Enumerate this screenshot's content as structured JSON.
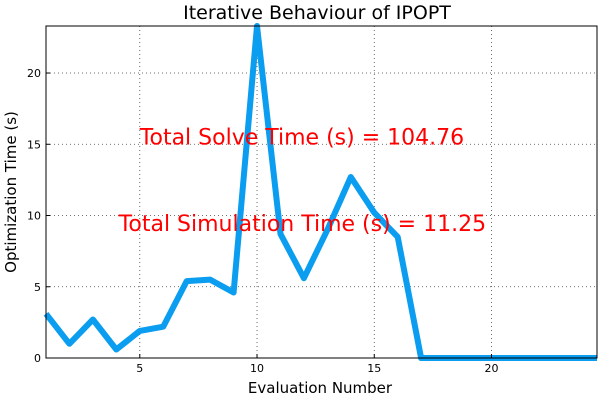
{
  "chart_data": {
    "type": "line",
    "title": "Iterative Behaviour of IPOPT",
    "xlabel": "Evaluation Number",
    "ylabel": "Optimization Time (s)",
    "xlim": [
      1,
      24.5
    ],
    "ylim": [
      0,
      23.3
    ],
    "xticks": [
      5,
      10,
      15,
      20
    ],
    "yticks": [
      0,
      5,
      10,
      15,
      20
    ],
    "grid": true,
    "series": [
      {
        "color": "#0b9df0",
        "x": [
          1,
          2,
          3,
          4,
          5,
          6,
          7,
          8,
          9,
          10,
          11,
          12,
          13,
          14,
          15,
          16,
          17,
          18,
          19,
          20,
          21,
          22,
          23,
          24,
          24.5
        ],
        "y": [
          3.1,
          1.0,
          2.7,
          0.6,
          1.9,
          2.2,
          5.4,
          5.5,
          4.6,
          23.3,
          8.7,
          5.6,
          9.0,
          12.7,
          10.2,
          8.5,
          0.0,
          0.0,
          0.0,
          0.0,
          0.0,
          0.0,
          0.0,
          0.0,
          0.0
        ]
      }
    ],
    "annotations": [
      {
        "text": "Total Solve Time (s) = 104.76",
        "x": 5.0,
        "y": 15.0,
        "color": "#ff0000"
      },
      {
        "text": "Total Simulation Time (s) = 11.25",
        "x": 4.1,
        "y": 8.9,
        "color": "#ff0000"
      }
    ]
  }
}
